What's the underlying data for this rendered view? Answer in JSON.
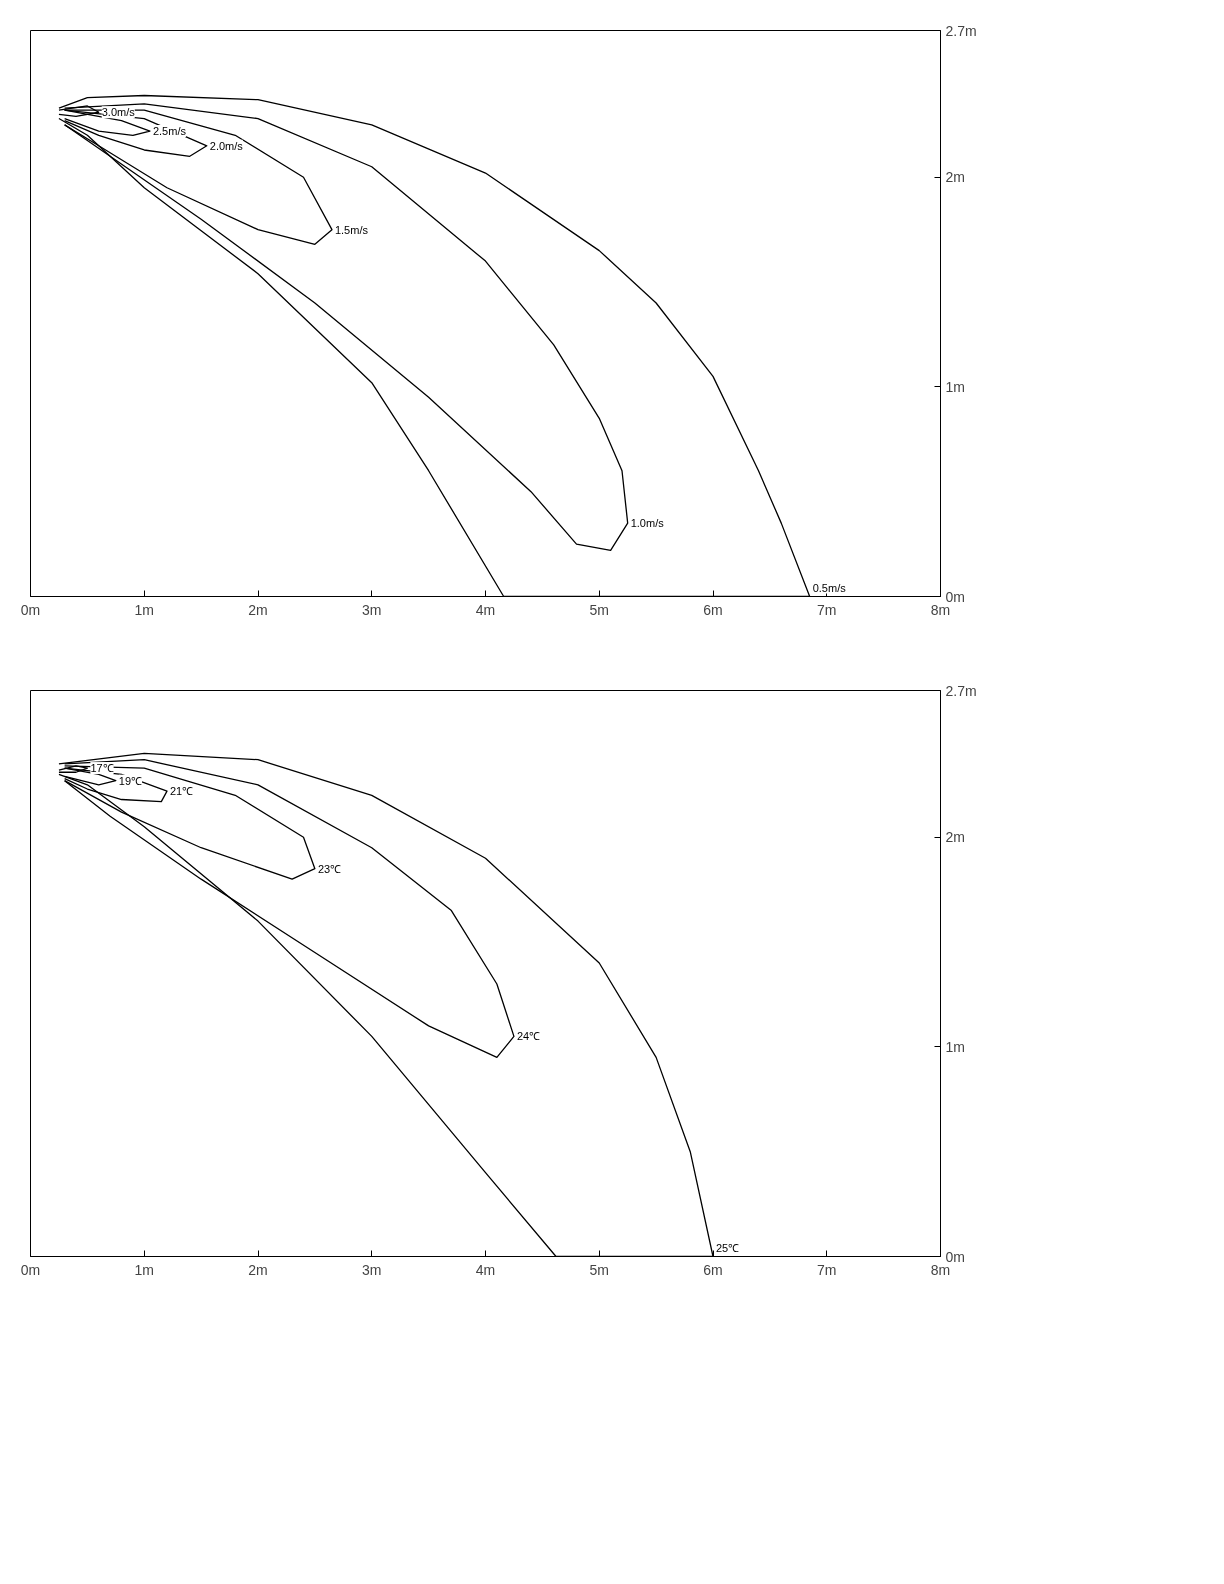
{
  "chart_data": [
    {
      "type": "line",
      "xlim": [
        0,
        8
      ],
      "ylim": [
        0,
        2.7
      ],
      "xticks": [
        {
          "value": 0,
          "label": "0m"
        },
        {
          "value": 1,
          "label": "1m"
        },
        {
          "value": 2,
          "label": "2m"
        },
        {
          "value": 3,
          "label": "3m"
        },
        {
          "value": 4,
          "label": "4m"
        },
        {
          "value": 5,
          "label": "5m"
        },
        {
          "value": 6,
          "label": "6m"
        },
        {
          "value": 7,
          "label": "7m"
        },
        {
          "value": 8,
          "label": "8m"
        }
      ],
      "yticks": [
        {
          "value": 0,
          "label": "0m"
        },
        {
          "value": 1,
          "label": "1m"
        },
        {
          "value": 2,
          "label": "2m"
        },
        {
          "value": 2.7,
          "label": "2.7m"
        }
      ],
      "grid": false,
      "marker": "none",
      "line_style": "solid",
      "series": [
        {
          "name": "0.5m/s",
          "color": "#000000",
          "x": [
            0.25,
            0.5,
            1,
            2,
            3,
            4,
            5,
            5.5,
            6,
            6.4,
            6.6,
            6.85,
            4.16,
            3.5,
            3,
            2,
            1,
            0.5,
            0.25
          ],
          "values": [
            2.33,
            2.38,
            2.39,
            2.37,
            2.25,
            2.02,
            1.65,
            1.4,
            1.05,
            0.6,
            0.35,
            0,
            0,
            0.6,
            1.02,
            1.54,
            1.95,
            2.2,
            2.28
          ]
        },
        {
          "name": "1.0m/s",
          "color": "#000000",
          "x": [
            0.3,
            1,
            2,
            3,
            4,
            4.6,
            5,
            5.2,
            5.25,
            5.1,
            4.8,
            4.4,
            3.5,
            2.5,
            1.5,
            0.7,
            0.3
          ],
          "values": [
            2.33,
            2.35,
            2.28,
            2.05,
            1.6,
            1.2,
            0.85,
            0.6,
            0.35,
            0.22,
            0.25,
            0.5,
            0.95,
            1.4,
            1.8,
            2.1,
            2.25
          ]
        },
        {
          "name": "1.5m/s",
          "color": "#000000",
          "x": [
            0.3,
            1,
            1.8,
            2.4,
            2.65,
            2.5,
            2,
            1.2,
            0.6,
            0.3
          ],
          "values": [
            2.32,
            2.32,
            2.2,
            2.0,
            1.75,
            1.68,
            1.75,
            1.95,
            2.15,
            2.25
          ]
        },
        {
          "name": "2.0m/s",
          "color": "#000000",
          "x": [
            0.3,
            1,
            1.55,
            1.4,
            1,
            0.6,
            0.3
          ],
          "values": [
            2.32,
            2.28,
            2.15,
            2.1,
            2.13,
            2.2,
            2.27
          ]
        },
        {
          "name": "2.5m/s",
          "color": "#000000",
          "x": [
            0.3,
            0.8,
            1.05,
            0.9,
            0.6,
            0.3
          ],
          "values": [
            2.32,
            2.27,
            2.22,
            2.2,
            2.22,
            2.28
          ]
        },
        {
          "name": "3.0m/s",
          "color": "#000000",
          "x": [
            0.25,
            0.5,
            0.6,
            0.4,
            0.25
          ],
          "values": [
            2.32,
            2.34,
            2.31,
            2.29,
            2.3
          ]
        }
      ]
    },
    {
      "type": "line",
      "xlim": [
        0,
        8
      ],
      "ylim": [
        0,
        2.7
      ],
      "xticks": [
        {
          "value": 0,
          "label": "0m"
        },
        {
          "value": 1,
          "label": "1m"
        },
        {
          "value": 2,
          "label": "2m"
        },
        {
          "value": 3,
          "label": "3m"
        },
        {
          "value": 4,
          "label": "4m"
        },
        {
          "value": 5,
          "label": "5m"
        },
        {
          "value": 6,
          "label": "6m"
        },
        {
          "value": 7,
          "label": "7m"
        },
        {
          "value": 8,
          "label": "8m"
        }
      ],
      "yticks": [
        {
          "value": 0,
          "label": "0m"
        },
        {
          "value": 1,
          "label": "1m"
        },
        {
          "value": 2,
          "label": "2m"
        },
        {
          "value": 2.7,
          "label": "2.7m"
        }
      ],
      "grid": false,
      "marker": "none",
      "line_style": "solid",
      "series": [
        {
          "name": "25℃",
          "color": "#000000",
          "x": [
            0.25,
            1,
            2,
            3,
            4,
            5,
            5.5,
            5.8,
            6.0,
            4.62,
            4,
            3,
            2,
            1,
            0.5,
            0.25
          ],
          "values": [
            2.35,
            2.4,
            2.37,
            2.2,
            1.9,
            1.4,
            0.95,
            0.5,
            0,
            0,
            0.4,
            1.05,
            1.6,
            2.05,
            2.25,
            2.3
          ]
        },
        {
          "name": "24℃",
          "color": "#000000",
          "x": [
            0.3,
            1,
            2,
            3,
            3.7,
            4.1,
            4.25,
            4.1,
            3.5,
            2.5,
            1.5,
            0.7,
            0.3
          ],
          "values": [
            2.35,
            2.37,
            2.25,
            1.95,
            1.65,
            1.3,
            1.05,
            0.95,
            1.1,
            1.45,
            1.8,
            2.1,
            2.27
          ]
        },
        {
          "name": "23℃",
          "color": "#000000",
          "x": [
            0.3,
            1,
            1.8,
            2.4,
            2.5,
            2.3,
            1.5,
            0.8,
            0.3
          ],
          "values": [
            2.34,
            2.33,
            2.2,
            2.0,
            1.85,
            1.8,
            1.95,
            2.12,
            2.27
          ]
        },
        {
          "name": "21℃",
          "color": "#000000",
          "x": [
            0.3,
            0.8,
            1.2,
            1.15,
            0.8,
            0.5,
            0.3
          ],
          "values": [
            2.33,
            2.3,
            2.22,
            2.17,
            2.18,
            2.23,
            2.28
          ]
        },
        {
          "name": "19℃",
          "color": "#000000",
          "x": [
            0.3,
            0.6,
            0.75,
            0.6,
            0.3
          ],
          "values": [
            2.33,
            2.3,
            2.27,
            2.25,
            2.29
          ]
        },
        {
          "name": "17℃",
          "color": "#000000",
          "x": [
            0.25,
            0.4,
            0.5,
            0.4,
            0.25
          ],
          "values": [
            2.32,
            2.34,
            2.33,
            2.31,
            2.31
          ]
        }
      ]
    }
  ]
}
